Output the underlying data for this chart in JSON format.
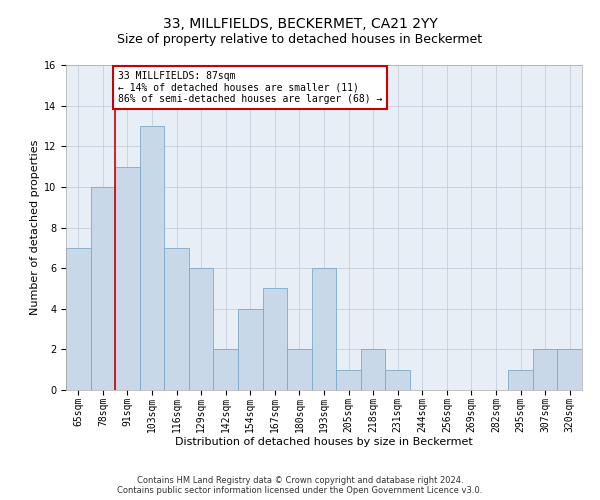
{
  "title": "33, MILLFIELDS, BECKERMET, CA21 2YY",
  "subtitle": "Size of property relative to detached houses in Beckermet",
  "xlabel": "Distribution of detached houses by size in Beckermet",
  "ylabel": "Number of detached properties",
  "categories": [
    "65sqm",
    "78sqm",
    "91sqm",
    "103sqm",
    "116sqm",
    "129sqm",
    "142sqm",
    "154sqm",
    "167sqm",
    "180sqm",
    "193sqm",
    "205sqm",
    "218sqm",
    "231sqm",
    "244sqm",
    "256sqm",
    "269sqm",
    "282sqm",
    "295sqm",
    "307sqm",
    "320sqm"
  ],
  "values": [
    7,
    10,
    11,
    13,
    7,
    6,
    2,
    4,
    5,
    2,
    6,
    1,
    2,
    1,
    0,
    0,
    0,
    0,
    1,
    2,
    2
  ],
  "bar_color": "#c8d8e8",
  "bar_edge_color": "#7aaaca",
  "property_sqm": 87,
  "annotation_text": "33 MILLFIELDS: 87sqm\n← 14% of detached houses are smaller (11)\n86% of semi-detached houses are larger (68) →",
  "annotation_box_color": "#ffffff",
  "annotation_box_edge": "#cc0000",
  "annotation_text_fontsize": 7,
  "property_line_color": "#cc0000",
  "ylim": [
    0,
    16
  ],
  "yticks": [
    0,
    2,
    4,
    6,
    8,
    10,
    12,
    14,
    16
  ],
  "grid_color": "#c0c8d8",
  "background_color": "#e8eef5",
  "footer_line1": "Contains HM Land Registry data © Crown copyright and database right 2024.",
  "footer_line2": "Contains public sector information licensed under the Open Government Licence v3.0.",
  "title_fontsize": 10,
  "subtitle_fontsize": 9,
  "xlabel_fontsize": 8,
  "ylabel_fontsize": 8,
  "tick_fontsize": 7
}
